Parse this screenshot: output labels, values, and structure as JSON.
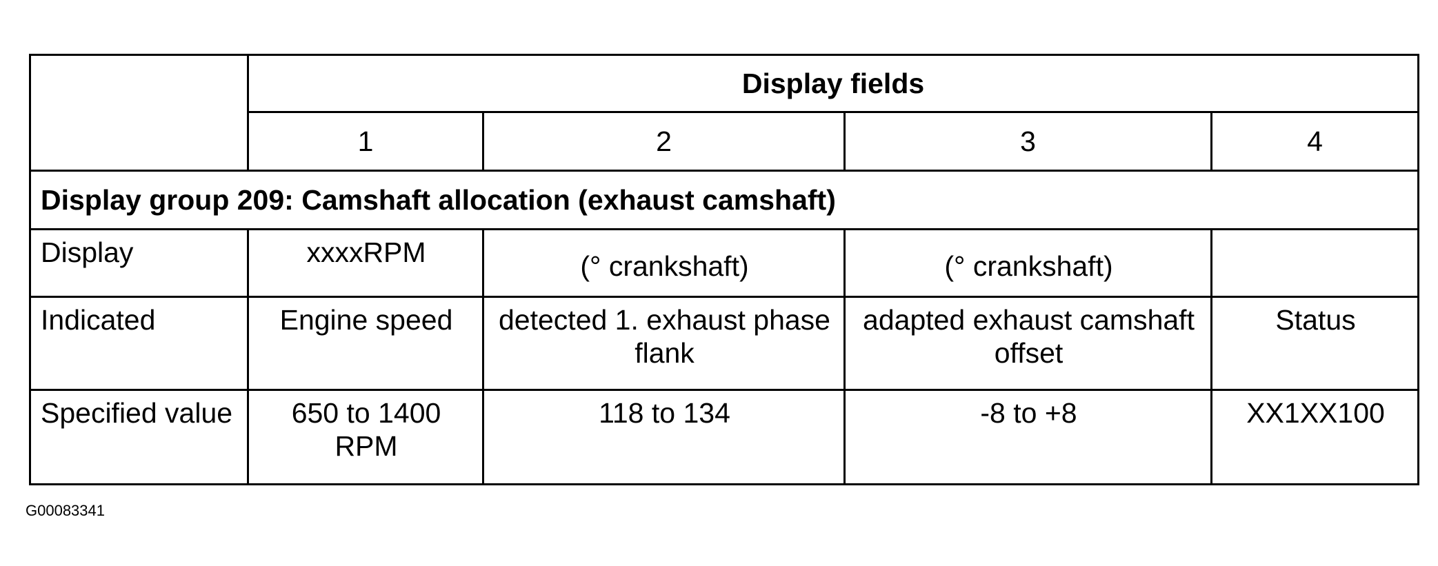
{
  "table": {
    "header": {
      "title": "Display fields",
      "columns": [
        "1",
        "2",
        "3",
        "4"
      ]
    },
    "group_title": "Display group 209: Camshaft allocation (exhaust camshaft)",
    "rows": [
      {
        "label": "Display",
        "cells": [
          "xxxxRPM",
          "(° crankshaft)",
          "(° crankshaft)",
          ""
        ]
      },
      {
        "label": "Indicated",
        "cells": [
          "Engine speed",
          "detected 1. exhaust phase flank",
          "adapted exhaust camshaft offset",
          "Status"
        ]
      },
      {
        "label": "Specified value",
        "cells": [
          "650 to 1400 RPM",
          "118 to 134",
          "-8 to +8",
          "XX1XX100"
        ]
      }
    ]
  },
  "figure_id": "G00083341"
}
